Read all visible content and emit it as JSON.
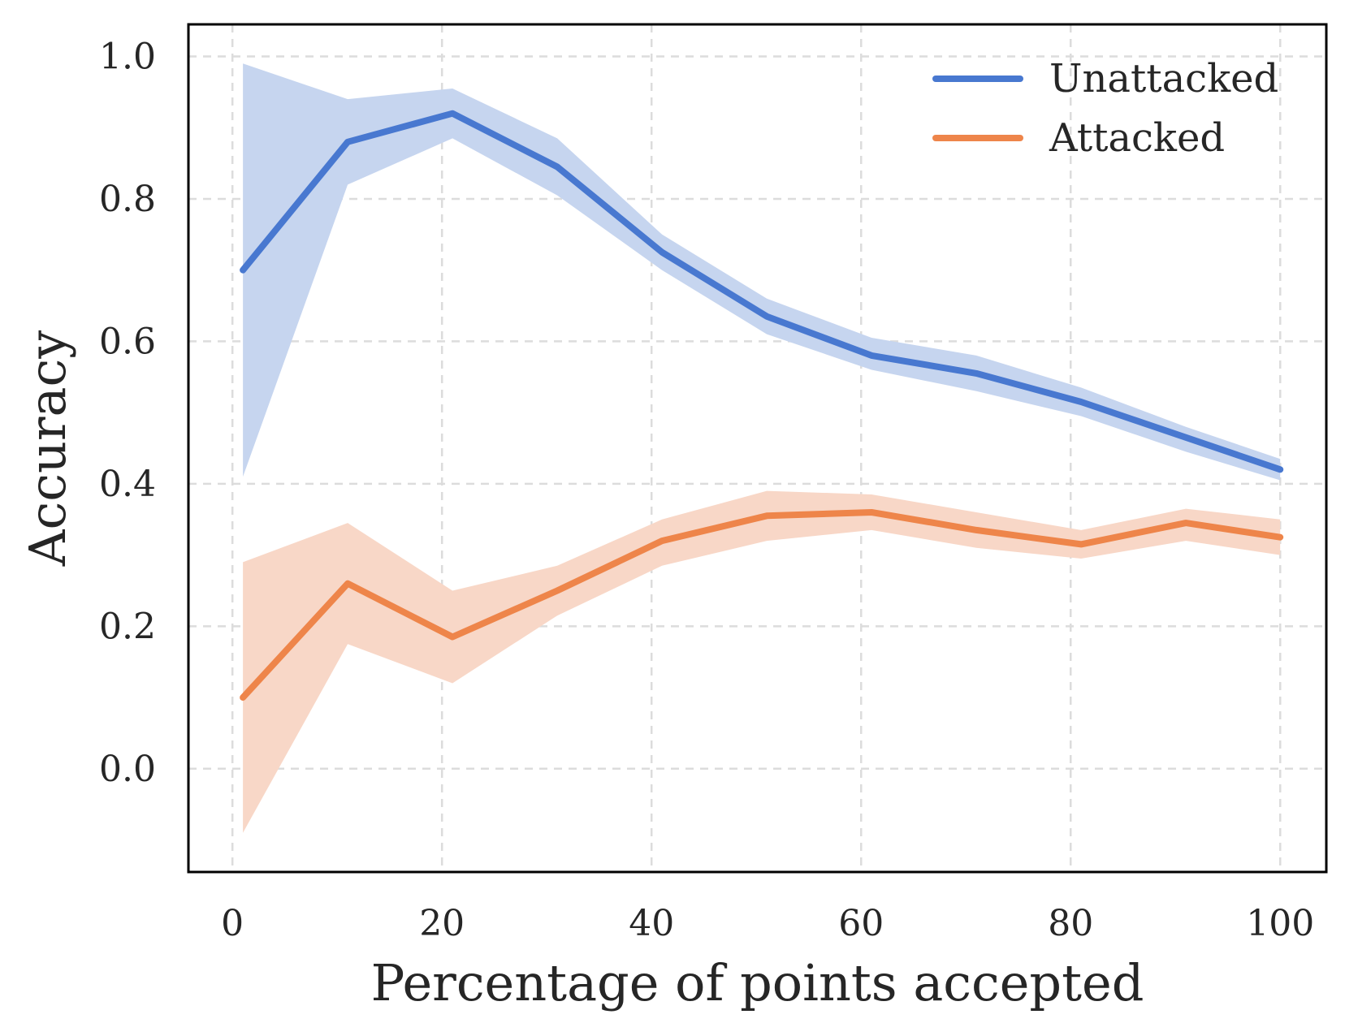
{
  "chart_data": {
    "type": "line",
    "xlabel": "Percentage of points accepted",
    "ylabel": "Accuracy",
    "xlim": [
      -4.2,
      104.4
    ],
    "ylim": [
      -0.145,
      1.045
    ],
    "xticks": [
      0,
      20,
      40,
      60,
      80,
      100
    ],
    "xtick_labels": [
      "0",
      "20",
      "40",
      "60",
      "80",
      "100"
    ],
    "yticks": [
      0.0,
      0.2,
      0.4,
      0.6,
      0.8,
      1.0
    ],
    "ytick_labels": [
      "0.0",
      "0.2",
      "0.4",
      "0.6",
      "0.8",
      "1.0"
    ],
    "grid": true,
    "legend_position": "top-right",
    "x": [
      1,
      11,
      21,
      31,
      41,
      51,
      61,
      71,
      81,
      91,
      100
    ],
    "series": [
      {
        "name": "Unattacked",
        "color": "#4878d0",
        "band_color": "#c6d5ef",
        "values": [
          0.7,
          0.88,
          0.92,
          0.845,
          0.725,
          0.635,
          0.58,
          0.555,
          0.515,
          0.465,
          0.42
        ],
        "lower": [
          0.41,
          0.82,
          0.885,
          0.805,
          0.7,
          0.61,
          0.56,
          0.53,
          0.495,
          0.445,
          0.405
        ],
        "upper": [
          0.99,
          0.94,
          0.955,
          0.885,
          0.75,
          0.66,
          0.605,
          0.58,
          0.535,
          0.48,
          0.435
        ]
      },
      {
        "name": "Attacked",
        "color": "#ee854a",
        "band_color": "#f8d7c7",
        "values": [
          0.1,
          0.26,
          0.185,
          0.25,
          0.32,
          0.355,
          0.36,
          0.335,
          0.315,
          0.345,
          0.325
        ],
        "lower": [
          -0.09,
          0.175,
          0.12,
          0.215,
          0.285,
          0.32,
          0.335,
          0.31,
          0.295,
          0.32,
          0.3
        ],
        "upper": [
          0.29,
          0.345,
          0.25,
          0.285,
          0.35,
          0.39,
          0.385,
          0.36,
          0.335,
          0.365,
          0.35
        ]
      }
    ]
  }
}
